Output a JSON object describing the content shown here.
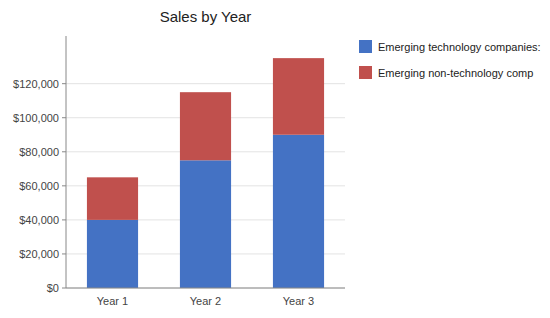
{
  "chart_data": {
    "type": "bar",
    "title": "Sales by Year",
    "categories": [
      "Year 1",
      "Year 2",
      "Year 3"
    ],
    "series": [
      {
        "name": "Emerging technology companies:",
        "color": "#4472C4",
        "values": [
          40000,
          75000,
          90000
        ]
      },
      {
        "name": "Emerging non-technology comp",
        "color": "#C0504D",
        "values": [
          25000,
          40000,
          45000
        ]
      }
    ],
    "stacked": true,
    "ylim": [
      0,
      148000
    ],
    "yticks": [
      {
        "value": 0,
        "label": "$0"
      },
      {
        "value": 20000,
        "label": "$20,000"
      },
      {
        "value": 40000,
        "label": "$40,000"
      },
      {
        "value": 60000,
        "label": "$60,000"
      },
      {
        "value": 80000,
        "label": "$80,000"
      },
      {
        "value": 100000,
        "label": "$100,000"
      },
      {
        "value": 120000,
        "label": "$120,000"
      }
    ],
    "grid": true,
    "legend": "right"
  }
}
